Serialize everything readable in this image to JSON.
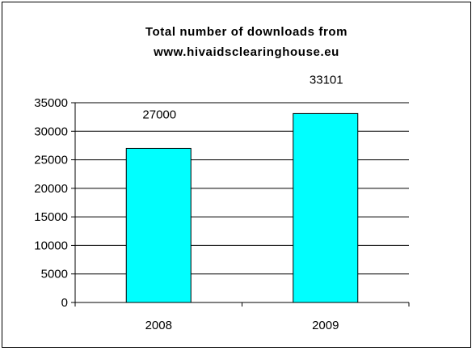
{
  "chart_data": {
    "type": "bar",
    "title_line1": "Total number of downloads from",
    "title_line2": "www.hivaidsclearinghouse.eu",
    "categories": [
      "2008",
      "2009"
    ],
    "values": [
      27000,
      33101
    ],
    "data_labels": [
      "27000",
      "33101"
    ],
    "ylim": [
      0,
      35000
    ],
    "y_ticks": [
      0,
      5000,
      10000,
      15000,
      20000,
      25000,
      30000,
      35000
    ],
    "bar_color": "#00ffff",
    "grid": true,
    "legend": "none"
  }
}
